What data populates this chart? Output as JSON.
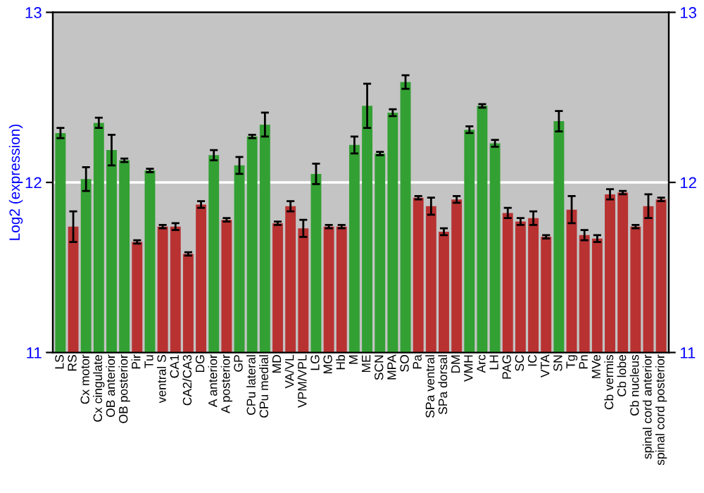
{
  "chart_data": {
    "type": "bar",
    "ylabel": "Log2 (expression)",
    "categories": [
      "LS",
      "RS",
      "Cx motor",
      "Cx cingulate",
      "OB anterior",
      "OB posterior",
      "Pir",
      "Tu",
      "ventral S",
      "CA1",
      "CA2/CA3",
      "DG",
      "A anterior",
      "A posterior",
      "GP",
      "CPu lateral",
      "CPu medial",
      "MD",
      "VA/VL",
      "VPM/VPL",
      "LG",
      "MG",
      "Hb",
      "M",
      "ME",
      "SCN",
      "MPA",
      "SO",
      "Pa",
      "SPa ventral",
      "SPa dorsal",
      "DM",
      "VMH",
      "Arc",
      "LH",
      "PAG",
      "SC",
      "IC",
      "VTA",
      "SN",
      "Tg",
      "Pn",
      "MVe",
      "Cb vermis",
      "Cb lobe",
      "Cb nucleus",
      "spinal cord anterior",
      "spinal cord posterior"
    ],
    "values": [
      12.29,
      11.74,
      12.02,
      12.35,
      12.19,
      12.13,
      11.65,
      12.07,
      11.74,
      11.74,
      11.58,
      11.87,
      12.16,
      11.78,
      12.1,
      12.27,
      12.34,
      11.76,
      11.86,
      11.73,
      12.05,
      11.74,
      11.74,
      12.22,
      12.45,
      12.17,
      12.41,
      12.59,
      11.91,
      11.86,
      11.71,
      11.9,
      12.31,
      12.45,
      12.23,
      11.82,
      11.77,
      11.79,
      11.68,
      12.36,
      11.84,
      11.69,
      11.67,
      11.93,
      11.94,
      11.74,
      11.86,
      11.9
    ],
    "errors": [
      0.03,
      0.09,
      0.07,
      0.03,
      0.09,
      0.01,
      0.01,
      0.01,
      0.01,
      0.02,
      0.01,
      0.02,
      0.03,
      0.01,
      0.05,
      0.01,
      0.07,
      0.01,
      0.03,
      0.05,
      0.06,
      0.01,
      0.01,
      0.05,
      0.13,
      0.01,
      0.02,
      0.04,
      0.01,
      0.05,
      0.02,
      0.02,
      0.02,
      0.01,
      0.02,
      0.03,
      0.02,
      0.04,
      0.01,
      0.06,
      0.08,
      0.03,
      0.02,
      0.03,
      0.01,
      0.01,
      0.07,
      0.01
    ],
    "colors": [
      "#33a033",
      "#b83232",
      "#33a033",
      "#33a033",
      "#33a033",
      "#33a033",
      "#b83232",
      "#33a033",
      "#b83232",
      "#b83232",
      "#b83232",
      "#b83232",
      "#33a033",
      "#b83232",
      "#33a033",
      "#33a033",
      "#33a033",
      "#b83232",
      "#b83232",
      "#b83232",
      "#33a033",
      "#b83232",
      "#b83232",
      "#33a033",
      "#33a033",
      "#33a033",
      "#33a033",
      "#33a033",
      "#b83232",
      "#b83232",
      "#b83232",
      "#b83232",
      "#33a033",
      "#33a033",
      "#33a033",
      "#b83232",
      "#b83232",
      "#b83232",
      "#b83232",
      "#33a033",
      "#b83232",
      "#b83232",
      "#b83232",
      "#b83232",
      "#b83232",
      "#b83232",
      "#b83232",
      "#b83232"
    ],
    "ylim": [
      11,
      13
    ],
    "yticks": [
      11,
      12,
      13
    ],
    "y2lim": [
      11,
      13
    ],
    "y2ticks": [
      11,
      12,
      13
    ],
    "grid": "y"
  }
}
